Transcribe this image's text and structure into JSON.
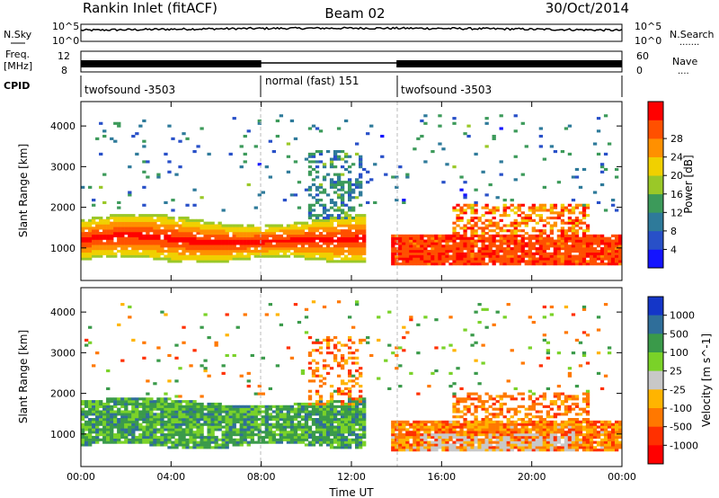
{
  "header": {
    "station": "Rankin Inlet (fitACF)",
    "beam": "Beam 02",
    "date": "30/Oct/2014"
  },
  "noise_panel": {
    "left_label": "N.Sky",
    "right_label": "N.Search",
    "right_legend_marker": ".......",
    "left_ticks": [
      "10^5",
      "10^0"
    ],
    "right_ticks": [
      "10^5",
      "10^0"
    ]
  },
  "freq_panel": {
    "left_label": "Freq.",
    "left_unit": "[MHz]",
    "left_ticks": [
      "12",
      "8"
    ],
    "right_label": "Nave",
    "right_legend_marker": "....",
    "right_ticks": [
      "60",
      "0"
    ]
  },
  "cpid_panel": {
    "label": "CPID",
    "segments": [
      {
        "name": "twofsound -3503",
        "start_hour": 0.0,
        "end_hour": 8.0
      },
      {
        "name": "normal (fast) 151",
        "start_hour": 8.0,
        "end_hour": 14.0
      },
      {
        "name": "twofsound -3503",
        "start_hour": 14.0,
        "end_hour": 24.0
      }
    ]
  },
  "chart_data": [
    {
      "type": "heatmap",
      "title": "",
      "xlabel": "Time UT",
      "ylabel": "Slant Range [km]",
      "xlim": [
        0,
        24
      ],
      "ylim": [
        200,
        4600
      ],
      "x_ticks": [
        "00:00",
        "04:00",
        "08:00",
        "12:00",
        "16:00",
        "20:00",
        "00:00"
      ],
      "y_ticks": [
        1000,
        2000,
        3000,
        4000
      ],
      "colorbar": {
        "label": "Power [dB]",
        "ticks": [
          "4",
          "8",
          "12",
          "16",
          "20",
          "24",
          "28"
        ],
        "colors": [
          "#1414ff",
          "#2850c8",
          "#2e7a9a",
          "#3c9a5a",
          "#9ac828",
          "#f0d000",
          "#ff9000",
          "#ff5000",
          "#ff0000"
        ]
      },
      "features": [
        {
          "name": "main echo band",
          "x_range": [
            0,
            12.5
          ],
          "range_km": [
            800,
            1700
          ],
          "level": "16-28 dB"
        },
        {
          "name": "bright band",
          "x_range": [
            14,
            24
          ],
          "range_km": [
            600,
            1300
          ],
          "level": "24-28 dB"
        },
        {
          "name": "upper patch",
          "x_range": [
            16.5,
            22.5
          ],
          "range_km": [
            1300,
            2000
          ],
          "level": "20-28 dB"
        },
        {
          "name": "scattered high-range echoes",
          "x_range": [
            9.5,
            24
          ],
          "range_km": [
            2000,
            4000
          ],
          "level": "4-16 dB"
        }
      ]
    },
    {
      "type": "heatmap",
      "title": "",
      "xlabel": "Time UT",
      "ylabel": "Slant Range [km]",
      "xlim": [
        0,
        24
      ],
      "ylim": [
        200,
        4600
      ],
      "x_ticks": [
        "00:00",
        "04:00",
        "08:00",
        "12:00",
        "16:00",
        "20:00",
        "00:00"
      ],
      "y_ticks": [
        1000,
        2000,
        3000,
        4000
      ],
      "colorbar": {
        "label": "Velocity [m s^-1]",
        "ticks": [
          "1000",
          "500",
          "100",
          "25",
          "-25",
          "-100",
          "-500",
          "-1000"
        ],
        "colors": [
          "#1436c8",
          "#2f6e9a",
          "#3a9a4a",
          "#7ad228",
          "#c8c8c8",
          "#ffb400",
          "#ff7800",
          "#ff3000",
          "#ff0000"
        ]
      },
      "features": [
        {
          "name": "positive velocity band",
          "x_range": [
            0,
            12.5
          ],
          "range_km": [
            700,
            1800
          ],
          "level": "25 to 500 m/s"
        },
        {
          "name": "negative velocity band",
          "x_range": [
            14,
            24
          ],
          "range_km": [
            600,
            1300
          ],
          "level": "-25 to -500 m/s"
        },
        {
          "name": "ground scatter",
          "x_range": [
            15,
            22
          ],
          "range_km": [
            300,
            1000
          ],
          "level": "-25 to 25 m/s"
        }
      ]
    }
  ]
}
